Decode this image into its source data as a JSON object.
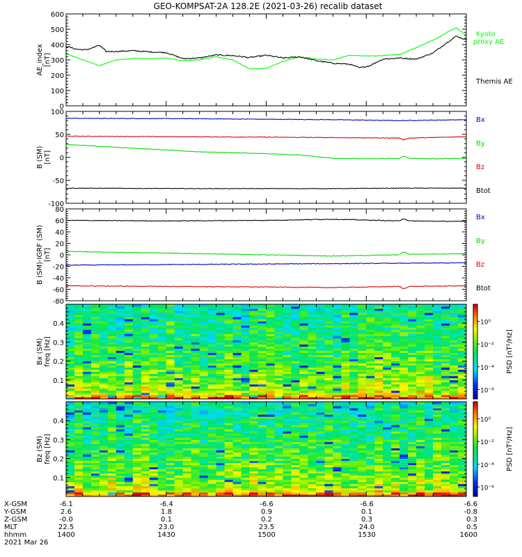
{
  "title": "GEO-KOMPSAT-2A 128.2E (2021-03-26) recalib dataset",
  "chart_data": [
    {
      "id": "ae",
      "type": "line",
      "ylabel": [
        "AE_index",
        "[nT]"
      ],
      "ylim": [
        0,
        600
      ],
      "yticks": [
        0,
        100,
        200,
        300,
        400,
        500,
        600
      ],
      "xlim": [
        0,
        120
      ],
      "series": [
        {
          "name": "Kyoto proxy AE",
          "label": [
            "Kyoto",
            "proxy AE"
          ],
          "color": "#00ff00",
          "x": [
            0,
            5,
            10,
            15,
            20,
            25,
            30,
            35,
            40,
            45,
            50,
            55,
            60,
            65,
            70,
            75,
            80,
            85,
            90,
            95,
            100,
            105,
            110,
            112,
            115,
            117,
            120
          ],
          "values": [
            340,
            300,
            262,
            300,
            310,
            308,
            312,
            295,
            300,
            320,
            300,
            240,
            245,
            290,
            320,
            305,
            300,
            330,
            325,
            328,
            335,
            380,
            430,
            450,
            490,
            510,
            460
          ]
        },
        {
          "name": "Themis AE",
          "label": [
            "Themis AE"
          ],
          "color": "#000000",
          "x": [
            0,
            3,
            6,
            10,
            12,
            15,
            20,
            25,
            30,
            35,
            40,
            45,
            50,
            55,
            60,
            65,
            70,
            75,
            80,
            85,
            88,
            91,
            95,
            100,
            105,
            110,
            114,
            117,
            120
          ],
          "values": [
            390,
            370,
            365,
            395,
            355,
            355,
            360,
            352,
            348,
            308,
            312,
            332,
            328,
            315,
            330,
            312,
            320,
            295,
            278,
            272,
            248,
            262,
            305,
            312,
            305,
            345,
            410,
            455,
            430
          ]
        }
      ]
    },
    {
      "id": "bsm",
      "type": "line",
      "ylabel": [
        "B (SM)",
        "[nT]"
      ],
      "ylim": [
        -100,
        100
      ],
      "yticks": [
        -100,
        -50,
        0,
        50,
        100
      ],
      "xlim": [
        0,
        120
      ],
      "series": [
        {
          "name": "Bx",
          "color": "#0000cc",
          "x": [
            0,
            40,
            80,
            100,
            120
          ],
          "values": [
            85,
            84,
            82,
            80,
            82
          ]
        },
        {
          "name": "By",
          "color": "#00dd00",
          "x": [
            0,
            20,
            40,
            60,
            70,
            80,
            90,
            100,
            101,
            103,
            110,
            120
          ],
          "values": [
            28,
            20,
            12,
            8,
            5,
            -2,
            -3,
            -2,
            3,
            -2,
            -3,
            -2
          ]
        },
        {
          "name": "Bz",
          "color": "#dd0000",
          "x": [
            0,
            30,
            60,
            80,
            100,
            101,
            103,
            120
          ],
          "values": [
            46,
            45,
            44,
            43,
            42,
            38,
            42,
            45
          ]
        },
        {
          "name": "Btot",
          "color": "#000000",
          "x": [
            0,
            40,
            80,
            100,
            120
          ],
          "values": [
            -67,
            -68,
            -68,
            -67,
            -67
          ]
        }
      ],
      "labels": [
        {
          "text": "Bx",
          "color": "#0000cc"
        },
        {
          "text": "By",
          "color": "#00dd00"
        },
        {
          "text": "Bz",
          "color": "#dd0000"
        },
        {
          "text": "Btot",
          "color": "#000000"
        }
      ]
    },
    {
      "id": "bigrf",
      "type": "line",
      "ylabel": [
        "B (SM)-IGRF (SM)",
        "[nT]"
      ],
      "ylim": [
        -80,
        80
      ],
      "yticks": [
        -80,
        -60,
        -40,
        -20,
        0,
        20,
        40,
        60,
        80
      ],
      "xlim": [
        0,
        120
      ],
      "series": [
        {
          "name": "Bx",
          "color": "#0000cc",
          "x": [
            0,
            30,
            60,
            90,
            120
          ],
          "values": [
            -18,
            -17,
            -16,
            -15,
            -14
          ]
        },
        {
          "name": "By",
          "color": "#00dd00",
          "x": [
            0,
            20,
            40,
            60,
            80,
            100,
            101,
            103,
            120
          ],
          "values": [
            6,
            4,
            2,
            0,
            -2,
            0,
            5,
            1,
            2
          ]
        },
        {
          "name": "Bz",
          "color": "#dd0000",
          "x": [
            0,
            30,
            60,
            80,
            100,
            101,
            103,
            120
          ],
          "values": [
            -54,
            -55,
            -56,
            -57,
            -55,
            -59,
            -55,
            -54
          ]
        },
        {
          "name": "Btot",
          "color": "#000000",
          "x": [
            0,
            30,
            60,
            80,
            100,
            101,
            103,
            120
          ],
          "values": [
            60,
            59,
            60,
            62,
            59,
            63,
            59,
            58
          ]
        }
      ],
      "labels": [
        {
          "text": "Bx",
          "color": "#0000cc"
        },
        {
          "text": "By",
          "color": "#00dd00"
        },
        {
          "text": "Bz",
          "color": "#dd0000"
        },
        {
          "text": "Btot",
          "color": "#000000"
        }
      ]
    },
    {
      "id": "specbx",
      "type": "heatmap",
      "ylabel": [
        "Bx (SM)",
        "freq [Hz]"
      ],
      "ylim": [
        0,
        0.5
      ],
      "yticks": [
        0.1,
        0.2,
        0.3,
        0.4
      ],
      "colorbar_label": "PSD [nT²/Hz]",
      "colorbar_ticks": [
        "10⁰",
        "10⁻²",
        "10⁻⁴",
        "10⁻⁶"
      ]
    },
    {
      "id": "specbz",
      "type": "heatmap",
      "ylabel": [
        "Bz (SM)",
        "freq [Hz]"
      ],
      "ylim": [
        0,
        0.5
      ],
      "yticks": [
        0.1,
        0.2,
        0.3,
        0.4
      ],
      "colorbar_label": "PSD [nT²/Hz]",
      "colorbar_ticks": [
        "10⁰",
        "10⁻²",
        "10⁻⁴",
        "10⁻⁶"
      ]
    }
  ],
  "time_axis": {
    "rows": [
      {
        "name": "X-GSM",
        "values": [
          "-6.1",
          "-6.4",
          "-6.6",
          "-6.6",
          "-6.6"
        ]
      },
      {
        "name": "Y-GSM",
        "values": [
          "2.6",
          "1.8",
          "0.9",
          "0.1",
          "-0.8"
        ]
      },
      {
        "name": "Z-GSM",
        "values": [
          "-0.0",
          "0.1",
          "0.2",
          "0.3",
          "0.3"
        ]
      },
      {
        "name": "MLT",
        "values": [
          "22.5",
          "23.0",
          "23.5",
          "24.0",
          "0.5"
        ]
      },
      {
        "name": "hhmm",
        "values": [
          "1400",
          "1430",
          "1500",
          "1530",
          "1600"
        ]
      }
    ],
    "date": "2021 Mar 26"
  }
}
